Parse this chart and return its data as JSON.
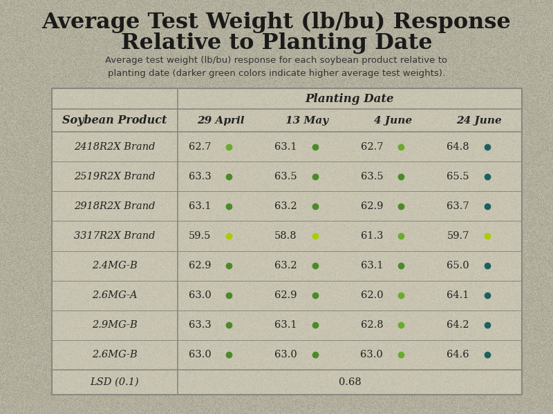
{
  "title_line1": "Average Test Weight (lb/bu) Response",
  "title_line2": "Relative to Planting Date",
  "subtitle": "Average test weight (lb/bu) response for each soybean product relative to\nplanting date (darker green colors indicate higher average test weights).",
  "col_header_group": "Planting Date",
  "col_headers": [
    "Soybean Product",
    "29 April",
    "13 May",
    "4 June",
    "24 June"
  ],
  "rows": [
    {
      "product": "2418R2X Brand",
      "values": [
        62.7,
        63.1,
        62.7,
        64.8
      ],
      "dot_colors": [
        "#6aaa2e",
        "#4a8a28",
        "#6aaa2e",
        "#1a6060"
      ]
    },
    {
      "product": "2519R2X Brand",
      "values": [
        63.3,
        63.5,
        63.5,
        65.5
      ],
      "dot_colors": [
        "#4a8a28",
        "#4a8a28",
        "#4a8a28",
        "#1a6060"
      ]
    },
    {
      "product": "2918R2X Brand",
      "values": [
        63.1,
        63.2,
        62.9,
        63.7
      ],
      "dot_colors": [
        "#4a8a28",
        "#4a8a28",
        "#4a8a28",
        "#1a6060"
      ]
    },
    {
      "product": "3317R2X Brand",
      "values": [
        59.5,
        58.8,
        61.3,
        59.7
      ],
      "dot_colors": [
        "#aacc00",
        "#aacc00",
        "#6aaa2e",
        "#aacc00"
      ]
    },
    {
      "product": "2.4MG-B",
      "values": [
        62.9,
        63.2,
        63.1,
        65.0
      ],
      "dot_colors": [
        "#4a8a28",
        "#4a8a28",
        "#4a8a28",
        "#1a6060"
      ]
    },
    {
      "product": "2.6MG-A",
      "values": [
        63.0,
        62.9,
        62.0,
        64.1
      ],
      "dot_colors": [
        "#4a8a28",
        "#4a8a28",
        "#6aaa2e",
        "#1a6060"
      ]
    },
    {
      "product": "2.9MG-B",
      "values": [
        63.3,
        63.1,
        62.8,
        64.2
      ],
      "dot_colors": [
        "#4a8a28",
        "#4a8a28",
        "#6aaa2e",
        "#1a6060"
      ]
    },
    {
      "product": "2.6MG-B",
      "values": [
        63.0,
        63.0,
        63.0,
        64.6
      ],
      "dot_colors": [
        "#4a8a28",
        "#4a8a28",
        "#6aaa2e",
        "#1a6060"
      ]
    }
  ],
  "lsd_label": "LSD (0.1)",
  "lsd_value": "0.68",
  "bg_color": "#b8b4a0",
  "table_bg": "#ccc8b4",
  "title_color": "#1a1a1a",
  "subtitle_color": "#333333",
  "header_text_color": "#222222",
  "cell_text_color": "#222222",
  "line_color": "#888880",
  "noise_alpha": 0.08
}
